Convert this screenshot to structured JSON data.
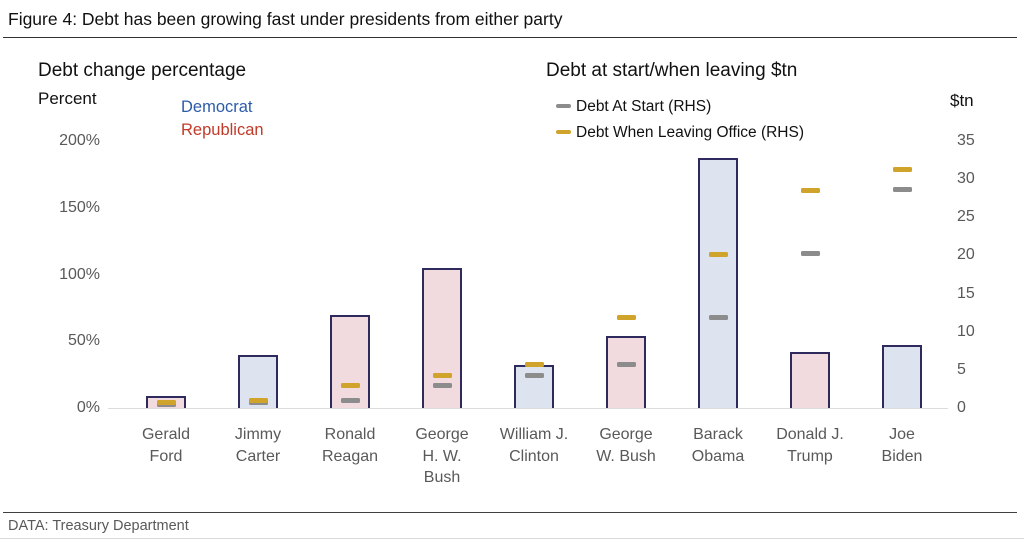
{
  "title": "Figure 4: Debt has been growing fast under presidents from either party",
  "left_section": {
    "heading": "Debt change percentage",
    "axis_label": "Percent"
  },
  "right_section": {
    "heading": "Debt at start/when leaving $tn",
    "axis_label": "$tn"
  },
  "party_legend": {
    "democrat_label": "Democrat",
    "republican_label": "Republican",
    "democrat_color": "#2d5ba8",
    "republican_color": "#c23b2a"
  },
  "rhs_legend": {
    "start_label": "Debt At Start (RHS)",
    "leaving_label": "Debt When Leaving Office (RHS)",
    "start_color": "#8c8c8c",
    "leaving_color": "#d0a32b"
  },
  "footer": {
    "source": "DATA: Treasury Department"
  },
  "chart_data": {
    "type": "bar",
    "title": "Figure 4: Debt has been growing fast under presidents from either party",
    "categories": [
      "Gerald Ford",
      "Jimmy Carter",
      "Ronald Reagan",
      "George H. W. Bush",
      "William J. Clinton",
      "George W. Bush",
      "Barack Obama",
      "Donald J. Trump",
      "Joe Biden"
    ],
    "category_lines": [
      [
        "Gerald",
        "Ford"
      ],
      [
        "Jimmy",
        "Carter"
      ],
      [
        "Ronald",
        "Reagan"
      ],
      [
        "George",
        "H. W.",
        "Bush"
      ],
      [
        "William J.",
        "Clinton"
      ],
      [
        "George",
        "W. Bush"
      ],
      [
        "Barack",
        "Obama"
      ],
      [
        "Donald J.",
        "Trump"
      ],
      [
        "Joe",
        "Biden"
      ]
    ],
    "party": [
      "Republican",
      "Democrat",
      "Republican",
      "Republican",
      "Democrat",
      "Republican",
      "Democrat",
      "Republican",
      "Democrat"
    ],
    "series": [
      {
        "name": "Debt change percentage",
        "axis": "left",
        "unit": "%",
        "values": [
          9,
          40,
          70,
          105,
          32,
          54,
          187,
          42,
          47
        ]
      },
      {
        "name": "Debt At Start (RHS)",
        "axis": "right",
        "unit": "$tn",
        "values": [
          0.5,
          0.7,
          1.0,
          2.9,
          4.3,
          5.7,
          11.8,
          20.2,
          28.7
        ]
      },
      {
        "name": "Debt When Leaving Office (RHS)",
        "axis": "right",
        "unit": "$tn",
        "values": [
          0.7,
          1.0,
          2.9,
          4.3,
          5.7,
          11.9,
          20.1,
          28.5,
          31.2
        ]
      }
    ],
    "left_axis": {
      "label": "Percent",
      "range": [
        0,
        200
      ],
      "tick_values": [
        200,
        150,
        100,
        50,
        0
      ],
      "tick_labels": [
        "200%",
        "150%",
        "100%",
        "50%",
        "0%"
      ]
    },
    "right_axis": {
      "label": "$tn",
      "range": [
        0,
        35
      ],
      "tick_values": [
        35,
        30,
        25,
        20,
        15,
        10,
        5,
        0
      ],
      "tick_labels": [
        "35",
        "30",
        "25",
        "20",
        "15",
        "10",
        "5",
        "0"
      ]
    },
    "legend_position": "top",
    "grid": false,
    "colors": {
      "democrat_fill": "#dde4f0",
      "republican_fill": "#f2dbde",
      "bar_border": "#2f2a5e",
      "start_dash": "#8c8c8c",
      "leaving_dash": "#d0a32b"
    }
  }
}
